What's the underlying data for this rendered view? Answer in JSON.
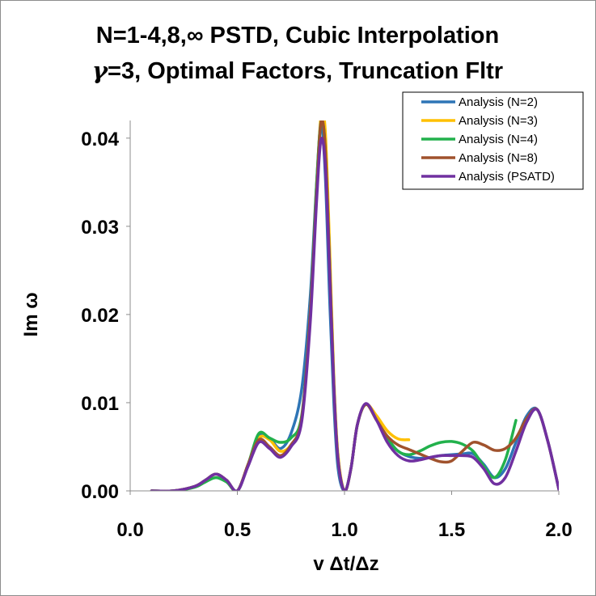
{
  "chart_data": {
    "type": "line",
    "title_lines": [
      "N=1-4,8,∞ PSTD, Cubic Interpolation",
      "=3, Optimal Factors, Truncation Fltr"
    ],
    "title_symbol": "γ",
    "xlabel": "v Δt/Δz",
    "ylabel": "Im ω",
    "xlim": [
      0.0,
      2.0
    ],
    "ylim": [
      0.0,
      0.042
    ],
    "xticks": [
      "0.0",
      "0.5",
      "1.0",
      "1.5",
      "2.0"
    ],
    "xtick_values": [
      0.0,
      0.5,
      1.0,
      1.5,
      2.0
    ],
    "yticks": [
      "0.00",
      "0.01",
      "0.02",
      "0.03",
      "0.04"
    ],
    "ytick_values": [
      0.0,
      0.01,
      0.02,
      0.03,
      0.04
    ],
    "grid": false,
    "legend_position": "top-right",
    "series": [
      {
        "name": "Analysis (N=2)",
        "color": "#2E75B6",
        "x": [
          0.1,
          0.2,
          0.3,
          0.35,
          0.4,
          0.45,
          0.5,
          0.55,
          0.6,
          0.65,
          0.7,
          0.75,
          0.8,
          0.84,
          0.87,
          0.89,
          0.91,
          0.93,
          0.95,
          0.97,
          1.0,
          1.03,
          1.06,
          1.1,
          1.15,
          1.2,
          1.25,
          1.3,
          1.35,
          1.4,
          1.45,
          1.5,
          1.55,
          1.6,
          1.65,
          1.7,
          1.75,
          1.8,
          1.85,
          1.9,
          1.95,
          2.0
        ],
        "y": [
          0.0,
          0.0,
          0.0005,
          0.0012,
          0.0019,
          0.0012,
          0.0,
          0.003,
          0.0062,
          0.006,
          0.0048,
          0.0065,
          0.0115,
          0.022,
          0.035,
          0.0415,
          0.036,
          0.022,
          0.01,
          0.0025,
          0.0,
          0.0025,
          0.0075,
          0.0098,
          0.0082,
          0.0058,
          0.0045,
          0.0039,
          0.0037,
          0.0038,
          0.004,
          0.0041,
          0.0042,
          0.0042,
          0.003,
          0.0015,
          0.0025,
          0.0055,
          0.0085,
          0.0092,
          0.0055,
          0.0002
        ]
      },
      {
        "name": "Analysis (N=3)",
        "color": "#FFC000",
        "x": [
          0.1,
          0.2,
          0.3,
          0.35,
          0.4,
          0.45,
          0.5,
          0.55,
          0.6,
          0.65,
          0.7,
          0.75,
          0.8,
          0.84,
          0.87,
          0.89,
          0.91,
          0.93,
          0.95,
          0.97,
          1.0,
          1.03,
          1.06,
          1.1,
          1.15,
          1.2,
          1.25,
          1.3
        ],
        "y": [
          0.0,
          0.0,
          0.0005,
          0.0012,
          0.0019,
          0.0012,
          0.0,
          0.003,
          0.006,
          0.0058,
          0.0045,
          0.0052,
          0.008,
          0.02,
          0.034,
          0.0425,
          0.041,
          0.028,
          0.013,
          0.004,
          0.0,
          0.0025,
          0.0075,
          0.0098,
          0.0085,
          0.0068,
          0.0059,
          0.0058
        ]
      },
      {
        "name": "Analysis (N=4)",
        "color": "#22B14C",
        "x": [
          0.1,
          0.2,
          0.3,
          0.35,
          0.4,
          0.45,
          0.5,
          0.55,
          0.6,
          0.65,
          0.7,
          0.75,
          0.8,
          0.84,
          0.87,
          0.89,
          0.91,
          0.93,
          0.95,
          0.97,
          1.0,
          1.03,
          1.06,
          1.1,
          1.15,
          1.2,
          1.25,
          1.3,
          1.35,
          1.4,
          1.45,
          1.5,
          1.55,
          1.6,
          1.65,
          1.7,
          1.75,
          1.8
        ],
        "y": [
          0.0,
          0.0,
          0.0004,
          0.001,
          0.0015,
          0.001,
          0.0,
          0.003,
          0.0065,
          0.006,
          0.0055,
          0.006,
          0.0085,
          0.02,
          0.035,
          0.0418,
          0.039,
          0.026,
          0.012,
          0.0035,
          0.0,
          0.0025,
          0.0075,
          0.0098,
          0.008,
          0.006,
          0.0045,
          0.0041,
          0.0045,
          0.0051,
          0.0055,
          0.0056,
          0.0053,
          0.0045,
          0.0028,
          0.0015,
          0.0035,
          0.008
        ]
      },
      {
        "name": "Analysis (N=8)",
        "color": "#A0522D",
        "x": [
          0.1,
          0.2,
          0.3,
          0.35,
          0.4,
          0.45,
          0.5,
          0.55,
          0.6,
          0.65,
          0.7,
          0.75,
          0.8,
          0.84,
          0.87,
          0.89,
          0.91,
          0.93,
          0.95,
          0.97,
          1.0,
          1.03,
          1.06,
          1.1,
          1.15,
          1.2,
          1.25,
          1.3,
          1.35,
          1.4,
          1.45,
          1.5,
          1.55,
          1.6,
          1.65,
          1.7,
          1.75,
          1.8,
          1.85,
          1.9,
          1.95,
          2.0
        ],
        "y": [
          0.0,
          0.0,
          0.0005,
          0.0012,
          0.0019,
          0.0012,
          0.0,
          0.003,
          0.0058,
          0.005,
          0.004,
          0.0052,
          0.0082,
          0.02,
          0.034,
          0.0418,
          0.039,
          0.026,
          0.012,
          0.0035,
          0.0,
          0.0025,
          0.0075,
          0.0098,
          0.008,
          0.0062,
          0.0052,
          0.0047,
          0.0042,
          0.0037,
          0.0033,
          0.0034,
          0.0045,
          0.0055,
          0.0052,
          0.0046,
          0.0048,
          0.006,
          0.0082,
          0.0092,
          0.0055,
          0.0002
        ]
      },
      {
        "name": "Analysis (PSATD)",
        "color": "#7030A0",
        "x": [
          0.1,
          0.2,
          0.3,
          0.35,
          0.4,
          0.45,
          0.5,
          0.55,
          0.6,
          0.65,
          0.7,
          0.75,
          0.8,
          0.84,
          0.87,
          0.89,
          0.91,
          0.93,
          0.95,
          0.97,
          1.0,
          1.03,
          1.06,
          1.1,
          1.15,
          1.2,
          1.25,
          1.3,
          1.35,
          1.4,
          1.45,
          1.5,
          1.55,
          1.6,
          1.65,
          1.7,
          1.75,
          1.8,
          1.85,
          1.9,
          1.95,
          2.0
        ],
        "y": [
          0.0,
          0.0,
          0.0005,
          0.0012,
          0.0019,
          0.0012,
          0.0,
          0.0028,
          0.0055,
          0.0048,
          0.0038,
          0.005,
          0.0078,
          0.019,
          0.033,
          0.0398,
          0.037,
          0.025,
          0.012,
          0.0035,
          0.0,
          0.0025,
          0.0075,
          0.0099,
          0.008,
          0.0055,
          0.004,
          0.0034,
          0.0035,
          0.0038,
          0.004,
          0.004,
          0.004,
          0.0038,
          0.0025,
          0.0008,
          0.0015,
          0.0045,
          0.0078,
          0.0092,
          0.0055,
          0.0002
        ]
      }
    ]
  }
}
